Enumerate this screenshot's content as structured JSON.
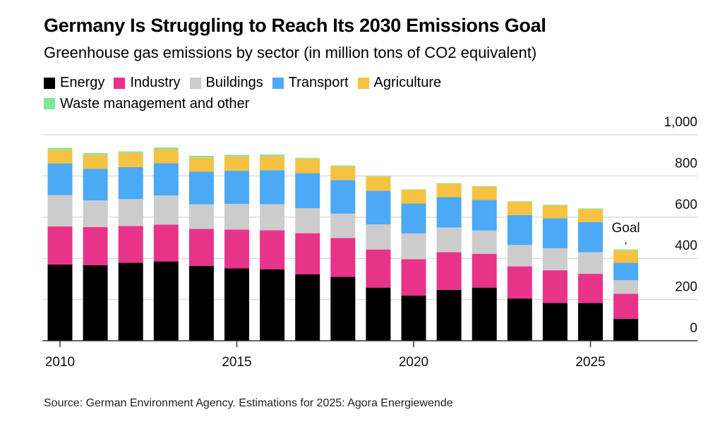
{
  "title": "Germany Is Struggling to Reach Its 2030 Emissions Goal",
  "subtitle": "Greenhouse gas emissions by sector (in million tons of CO2 equivalent)",
  "source": "Source: German Environment Agency. Estimations for 2025: Agora Energiewende",
  "chart_data": {
    "type": "bar",
    "stacked": true,
    "title": "Germany Is Struggling to Reach Its 2030 Emissions Goal",
    "subtitle": "Greenhouse gas emissions by sector (in million tons of CO2 equivalent)",
    "categories": [
      "2010",
      "2011",
      "2012",
      "2013",
      "2014",
      "2015",
      "2016",
      "2017",
      "2018",
      "2019",
      "2020",
      "2021",
      "2022",
      "2023",
      "2024",
      "2025",
      "Goal"
    ],
    "x_tick_labels": [
      "2010",
      "2015",
      "2020",
      "2025"
    ],
    "annotation": "Goal",
    "y_ticks": [
      0,
      200,
      400,
      600,
      800,
      1000
    ],
    "y_tick_labels": [
      "0",
      "200",
      "400",
      "600",
      "800",
      "1,000"
    ],
    "ylim": [
      0,
      1000
    ],
    "y_axis_side": "right",
    "grid": true,
    "legend_position": "top-left",
    "series": [
      {
        "name": "Energy",
        "color": "#000000",
        "values": [
          370,
          367,
          379,
          385,
          364,
          351,
          347,
          323,
          310,
          258,
          219,
          247,
          258,
          205,
          183,
          183,
          106
        ]
      },
      {
        "name": "Industry",
        "color": "#e8338a",
        "values": [
          185,
          185,
          178,
          179,
          179,
          189,
          189,
          199,
          189,
          185,
          177,
          183,
          164,
          156,
          159,
          142,
          122
        ]
      },
      {
        "name": "Buildings",
        "color": "#cccccc",
        "values": [
          152,
          129,
          131,
          141,
          119,
          124,
          127,
          122,
          118,
          122,
          125,
          120,
          113,
          104,
          107,
          105,
          66
        ]
      },
      {
        "name": "Transport",
        "color": "#4ba9f5",
        "values": [
          154,
          154,
          155,
          157,
          159,
          161,
          165,
          169,
          163,
          163,
          145,
          147,
          149,
          145,
          145,
          146,
          85
        ]
      },
      {
        "name": "Agriculture",
        "color": "#f5c242",
        "values": [
          66,
          68,
          69,
          68,
          69,
          70,
          68,
          71,
          67,
          69,
          67,
          65,
          64,
          65,
          62,
          63,
          59
        ]
      },
      {
        "name": "Waste management and other",
        "color": "#7de89a",
        "values": [
          9,
          8,
          7,
          8,
          8,
          7,
          8,
          4,
          4,
          3,
          2,
          3,
          3,
          2,
          4,
          3,
          5
        ]
      }
    ]
  }
}
